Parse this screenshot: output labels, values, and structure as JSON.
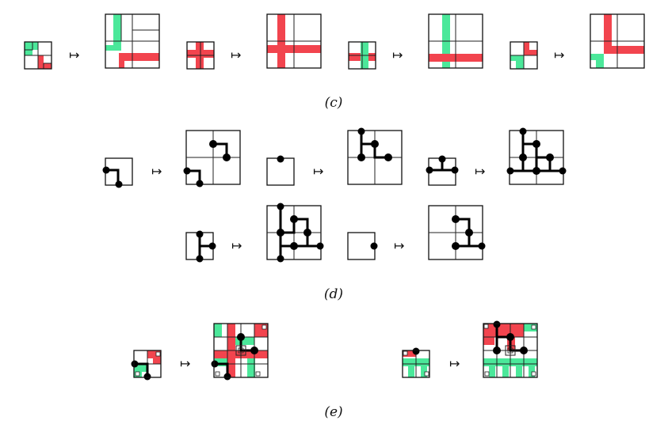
{
  "figure": {
    "captions": {
      "c": "(c)",
      "d": "(d)",
      "e": "(e)"
    },
    "maps_to_symbol": "↦",
    "colors": {
      "green": "#4be89a",
      "red": "#f2444e",
      "black": "#000000",
      "grid": "#222222"
    },
    "rows": {
      "c": {
        "rule_count": 4,
        "description_name": "colored-strip substitution rules"
      },
      "d": {
        "rule_count": 5,
        "description_name": "ball-and-stick substitution rules"
      },
      "e": {
        "rule_count": 2,
        "description_name": "combined substitution rules"
      }
    }
  }
}
